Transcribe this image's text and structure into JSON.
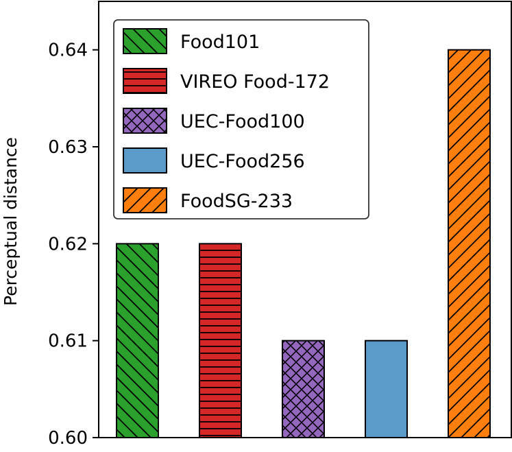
{
  "chart_data": {
    "type": "bar",
    "title": "",
    "xlabel": "",
    "ylabel": "Perceptual distance",
    "ylim": [
      0.6,
      0.645
    ],
    "yticks": [
      0.6,
      0.61,
      0.62,
      0.63,
      0.64
    ],
    "ytick_labels": [
      "0.60",
      "0.61",
      "0.62",
      "0.63",
      "0.64"
    ],
    "grid": false,
    "legend_position": "upper-left",
    "bars": [
      {
        "name": "Food101",
        "value": 0.62,
        "color": "#2ca02c",
        "hatch": "backslash"
      },
      {
        "name": "VIREO Food-172",
        "value": 0.62,
        "color": "#d62728",
        "hatch": "horizontal"
      },
      {
        "name": "UEC-Food100",
        "value": 0.61,
        "color": "#9467bd",
        "hatch": "cross"
      },
      {
        "name": "UEC-Food256",
        "value": 0.61,
        "color": "#5b9bc9",
        "hatch": "none"
      },
      {
        "name": "FoodSG-233",
        "value": 0.64,
        "color": "#ff7f0e",
        "hatch": "slash"
      }
    ]
  }
}
